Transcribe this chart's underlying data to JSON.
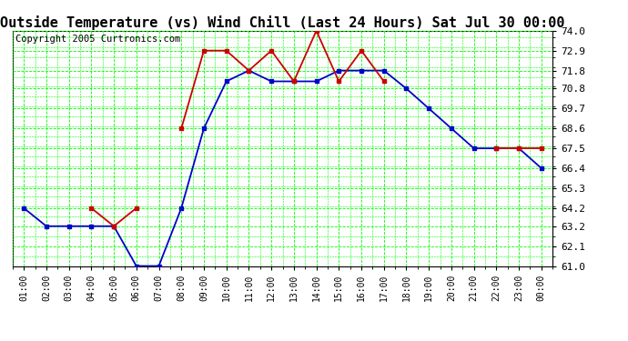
{
  "title": "Outside Temperature (vs) Wind Chill (Last 24 Hours) Sat Jul 30 00:00",
  "copyright": "Copyright 2005 Curtronics.com",
  "x_labels": [
    "01:00",
    "02:00",
    "03:00",
    "04:00",
    "05:00",
    "06:00",
    "07:00",
    "08:00",
    "09:00",
    "10:00",
    "11:00",
    "12:00",
    "13:00",
    "14:00",
    "15:00",
    "16:00",
    "17:00",
    "18:00",
    "19:00",
    "20:00",
    "21:00",
    "22:00",
    "23:00",
    "00:00"
  ],
  "blue_data": [
    64.2,
    63.2,
    63.2,
    63.2,
    63.2,
    61.0,
    61.0,
    64.2,
    68.6,
    71.2,
    71.8,
    71.2,
    71.2,
    71.2,
    71.8,
    71.8,
    71.8,
    70.8,
    69.7,
    68.6,
    67.5,
    67.5,
    67.5,
    66.4
  ],
  "red_data": [
    null,
    null,
    null,
    64.2,
    63.2,
    64.2,
    null,
    68.6,
    72.9,
    72.9,
    71.8,
    72.9,
    71.2,
    74.0,
    71.2,
    72.9,
    71.2,
    null,
    null,
    null,
    null,
    67.5,
    67.5,
    67.5
  ],
  "ylim": [
    61.0,
    74.0
  ],
  "yticks": [
    61.0,
    62.1,
    63.2,
    64.2,
    65.3,
    66.4,
    67.5,
    68.6,
    69.7,
    70.8,
    71.8,
    72.9,
    74.0
  ],
  "bg_color": "#ffffff",
  "plot_bg_color": "#ffffff",
  "grid_color": "#00ff00",
  "blue_color": "#0000cc",
  "red_color": "#cc0000",
  "title_fontsize": 11,
  "copyright_fontsize": 7.5,
  "tick_fontsize": 8,
  "xtick_fontsize": 7
}
